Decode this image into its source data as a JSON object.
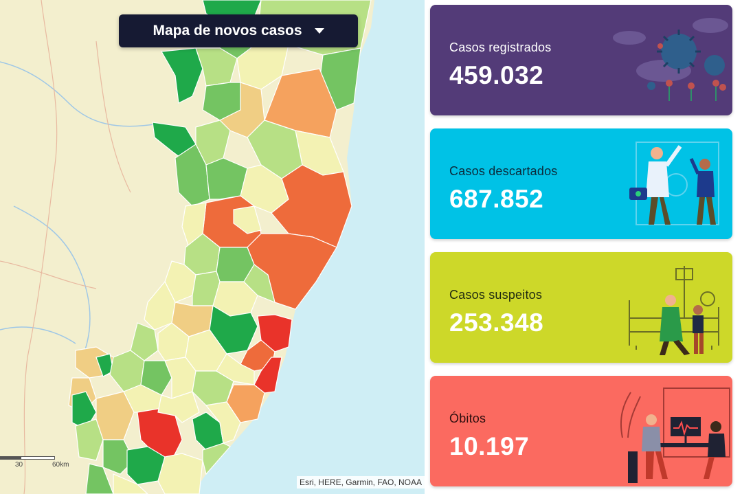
{
  "map": {
    "dropdown_label": "Mapa de novos casos",
    "scale": {
      "tick_a": "30",
      "tick_b": "60km"
    },
    "attribution": "Esri, HERE, Garmin, FAO, NOAA",
    "colors": {
      "land": "#f3efce",
      "ocean": "#cfeef5",
      "level_1": "#1fa94a",
      "level_2": "#74c462",
      "level_3": "#b7e085",
      "level_4": "#f3f2b3",
      "level_5": "#f0ce84",
      "level_6": "#f5a25e",
      "level_7": "#ee6b3b",
      "level_8": "#e9332a"
    }
  },
  "cards": [
    {
      "label": "Casos registrados",
      "value": "459.032",
      "color": "#533b78",
      "icon": "virus-illustration"
    },
    {
      "label": "Casos descartados",
      "value": "687.852",
      "color": "#00c2e6",
      "icon": "doctors-illustration"
    },
    {
      "label": "Casos suspeitos",
      "value": "253.348",
      "color": "#cdd829",
      "icon": "hospital-bed-illustration"
    },
    {
      "label": "Óbitos",
      "value": "10.197",
      "color": "#fb6a60",
      "icon": "consultation-illustration"
    }
  ]
}
